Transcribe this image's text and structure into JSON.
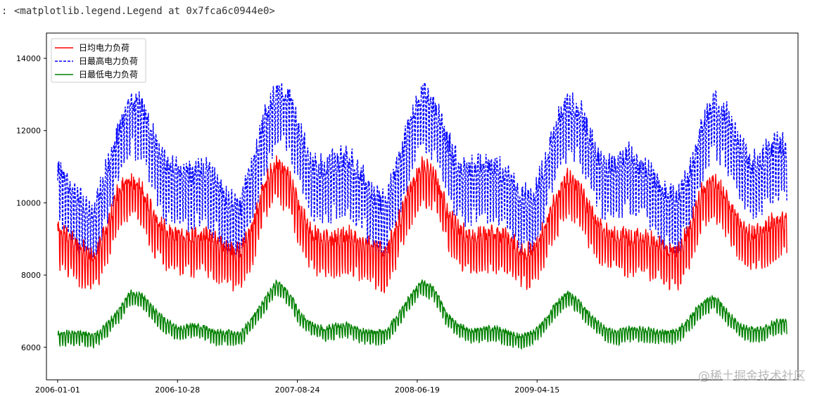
{
  "cell": {
    "prompt": ":",
    "output_text": "<matplotlib.legend.Legend at 0x7fca6c0944e0>"
  },
  "watermark": "@稀土掘金技术社区",
  "chart_data": {
    "type": "line",
    "title": "",
    "xlabel": "",
    "ylabel": "",
    "x_start": "2006-01-01",
    "x_end": "2010-12-31",
    "xlim": [
      "2005-12-04",
      "2011-01-28"
    ],
    "ylim": [
      5100,
      14700
    ],
    "x_tick_labels": [
      "2006-01-01",
      "2006-10-28",
      "2007-08-24",
      "2008-06-19",
      "2009-04-15"
    ],
    "y_ticks": [
      6000,
      8000,
      10000,
      12000,
      14000
    ],
    "grid": false,
    "legend": "top-left",
    "weekly_cycle": true,
    "series": [
      {
        "name": "日均电力负荷",
        "color": "#ff0000",
        "style": "solid",
        "monthly_level": [
          8950,
          8700,
          8400,
          8200,
          9000,
          10000,
          10300,
          10000,
          9200,
          8900,
          8800,
          8700,
          8800,
          8600,
          8400,
          8300,
          9000,
          10200,
          10800,
          10400,
          9400,
          8800,
          8700,
          8700,
          8800,
          8600,
          8400,
          8300,
          9100,
          10100,
          10700,
          10500,
          9500,
          8900,
          8800,
          8800,
          8800,
          8700,
          8400,
          8300,
          9000,
          9800,
          10400,
          10000,
          9300,
          8900,
          8800,
          8700,
          8700,
          8600,
          8400,
          8300,
          9000,
          10000,
          10300,
          9800,
          9100,
          8800,
          8900,
          9200
        ],
        "weekly_amplitude": 900
      },
      {
        "name": "日最高电力负荷",
        "color": "#0000ff",
        "style": "dashed",
        "monthly_level": [
          10400,
          10000,
          9500,
          9300,
          10400,
          11500,
          12400,
          12200,
          11200,
          10500,
          10500,
          10300,
          10500,
          10100,
          9600,
          9400,
          10500,
          11800,
          12700,
          12500,
          11400,
          10500,
          10500,
          10700,
          10700,
          10300,
          9700,
          9500,
          10600,
          11800,
          12600,
          12200,
          11300,
          10500,
          10500,
          10600,
          10500,
          10300,
          9800,
          9600,
          10500,
          11700,
          12300,
          12000,
          11200,
          10500,
          10600,
          10800,
          10500,
          10200,
          9800,
          9600,
          10400,
          11700,
          12400,
          12000,
          11200,
          10600,
          10800,
          11100
        ],
        "weekly_amplitude": 1300
      },
      {
        "name": "日最低电力负荷",
        "color": "#008000",
        "style": "solid",
        "monthly_level": [
          6250,
          6300,
          6300,
          6200,
          6500,
          6900,
          7400,
          7300,
          6900,
          6600,
          6400,
          6500,
          6450,
          6300,
          6300,
          6250,
          6700,
          7200,
          7700,
          7400,
          6800,
          6500,
          6400,
          6500,
          6500,
          6350,
          6300,
          6350,
          6800,
          7300,
          7700,
          7500,
          6800,
          6500,
          6350,
          6400,
          6400,
          6300,
          6200,
          6300,
          6600,
          7100,
          7400,
          7100,
          6700,
          6400,
          6300,
          6400,
          6400,
          6350,
          6300,
          6350,
          6700,
          7100,
          7300,
          6900,
          6500,
          6400,
          6400,
          6600
        ],
        "weekly_amplitude": 300
      }
    ]
  }
}
